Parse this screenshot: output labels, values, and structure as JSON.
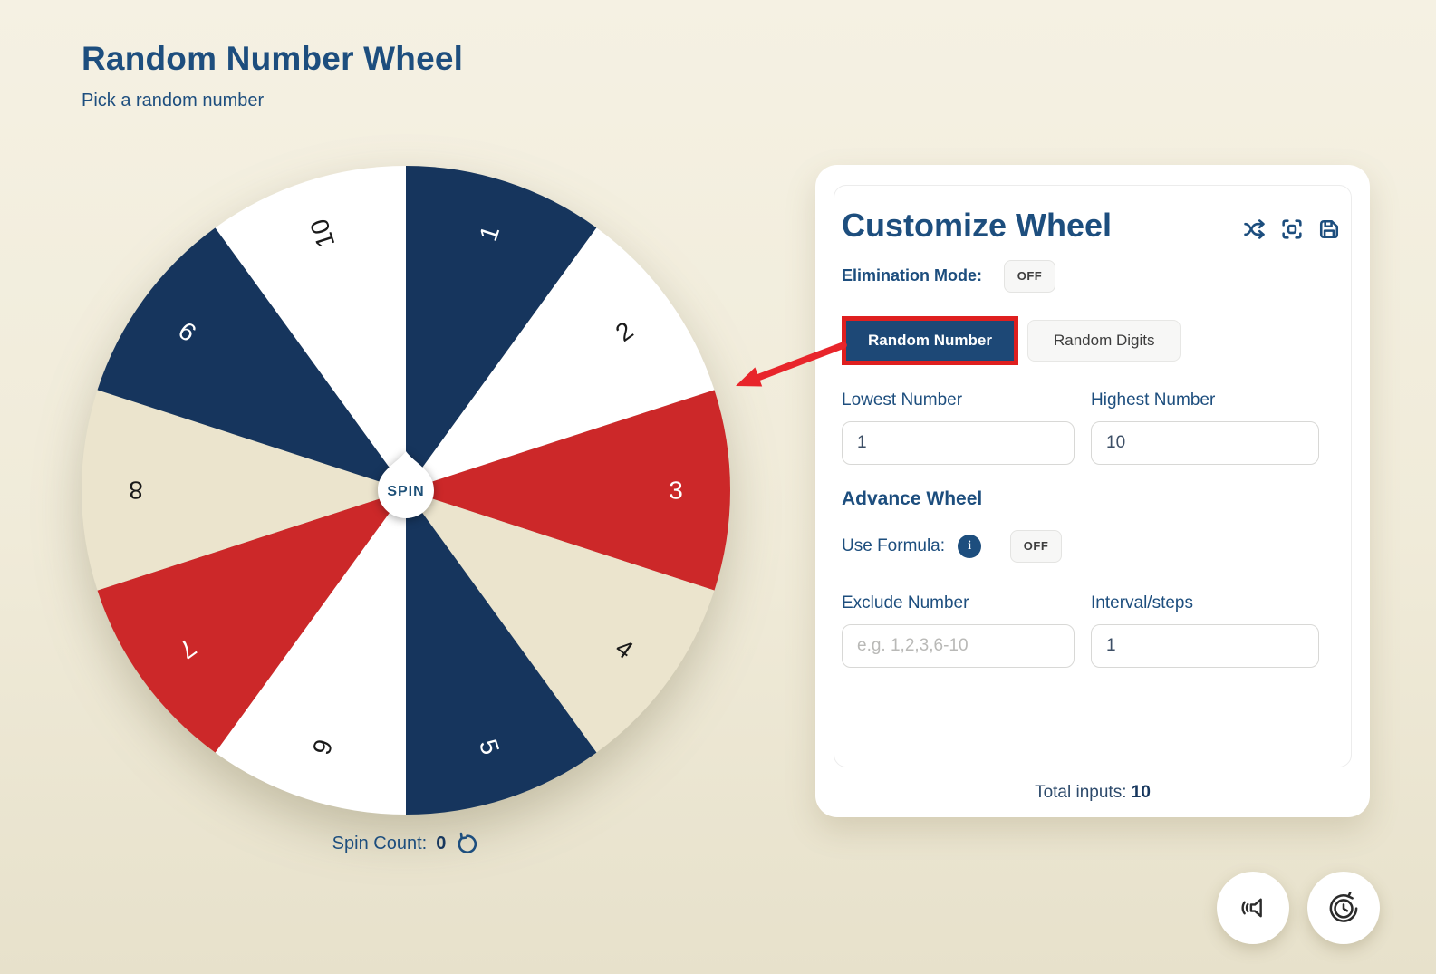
{
  "page": {
    "title": "Random Number Wheel",
    "subtitle": "Pick a random number"
  },
  "wheel": {
    "spin_label": "SPIN",
    "spin_count_label": "Spin Count:",
    "spin_count_value": "0",
    "segments": [
      {
        "label": "1",
        "color": "navy"
      },
      {
        "label": "2",
        "color": "white"
      },
      {
        "label": "3",
        "color": "red"
      },
      {
        "label": "4",
        "color": "cream"
      },
      {
        "label": "5",
        "color": "navy"
      },
      {
        "label": "6",
        "color": "white"
      },
      {
        "label": "7",
        "color": "red"
      },
      {
        "label": "8",
        "color": "cream"
      },
      {
        "label": "9",
        "color": "navy"
      },
      {
        "label": "10",
        "color": "white"
      }
    ],
    "colors": {
      "navy": "#16355d",
      "white": "#ffffff",
      "red": "#cc2829",
      "cream": "#ebe4cd"
    },
    "text_colors": {
      "navy": "#ffffff",
      "white": "#1a1a1a",
      "red": "#ffffff",
      "cream": "#1a1a1a"
    }
  },
  "panel": {
    "title": "Customize Wheel",
    "elimination_label": "Elimination Mode:",
    "elimination_state": "OFF",
    "tabs": [
      {
        "label": "Random Number",
        "active": true
      },
      {
        "label": "Random Digits",
        "active": false
      }
    ],
    "fields": {
      "lowest": {
        "label": "Lowest Number",
        "value": "1"
      },
      "highest": {
        "label": "Highest Number",
        "value": "10"
      },
      "exclude": {
        "label": "Exclude Number",
        "placeholder": "e.g. 1,2,3,6-10"
      },
      "interval": {
        "label": "Interval/steps",
        "value": "1"
      }
    },
    "advance_label": "Advance Wheel",
    "use_formula_label": "Use Formula:",
    "use_formula_info": "i",
    "use_formula_state": "OFF",
    "total_inputs_label": "Total inputs:",
    "total_inputs_value": "10"
  },
  "annotation": {
    "highlight_color": "#df1f1f",
    "arrow_color": "#e8252b"
  },
  "theme": {
    "navy_text": "#1d4e7e",
    "card_bg": "#ffffff",
    "page_bg": "#f0ebd9"
  }
}
